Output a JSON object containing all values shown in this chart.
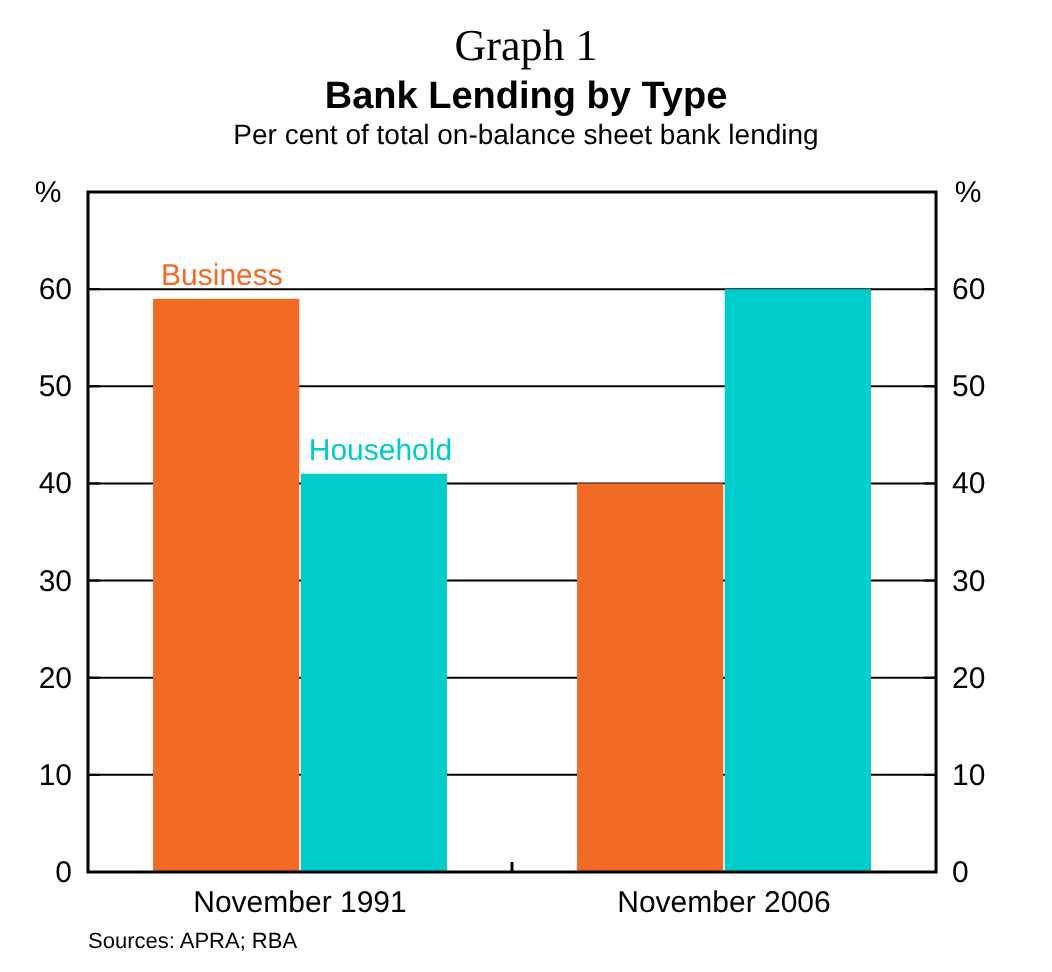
{
  "chart_data": {
    "type": "bar",
    "title": "Bank Lending by Type",
    "subtitle": "Per cent of total on-balance sheet bank lending",
    "ylabel": "%",
    "y2label": "%",
    "categories": [
      "November 1991",
      "November 2006"
    ],
    "series": [
      {
        "name": "Business",
        "color": "#f26a25",
        "values": [
          59,
          40
        ]
      },
      {
        "name": "Household",
        "color": "#00cccc",
        "values": [
          41,
          60
        ]
      }
    ],
    "ylim": [
      0,
      70
    ],
    "yticks": [
      0,
      10,
      20,
      30,
      40,
      50,
      60
    ],
    "y2lim": [
      0,
      70
    ],
    "y2ticks": [
      0,
      10,
      20,
      30,
      40,
      50,
      60
    ],
    "grid": "y",
    "legend": false,
    "annotations": [
      "Graph 1",
      "Sources: APRA; RBA"
    ]
  }
}
